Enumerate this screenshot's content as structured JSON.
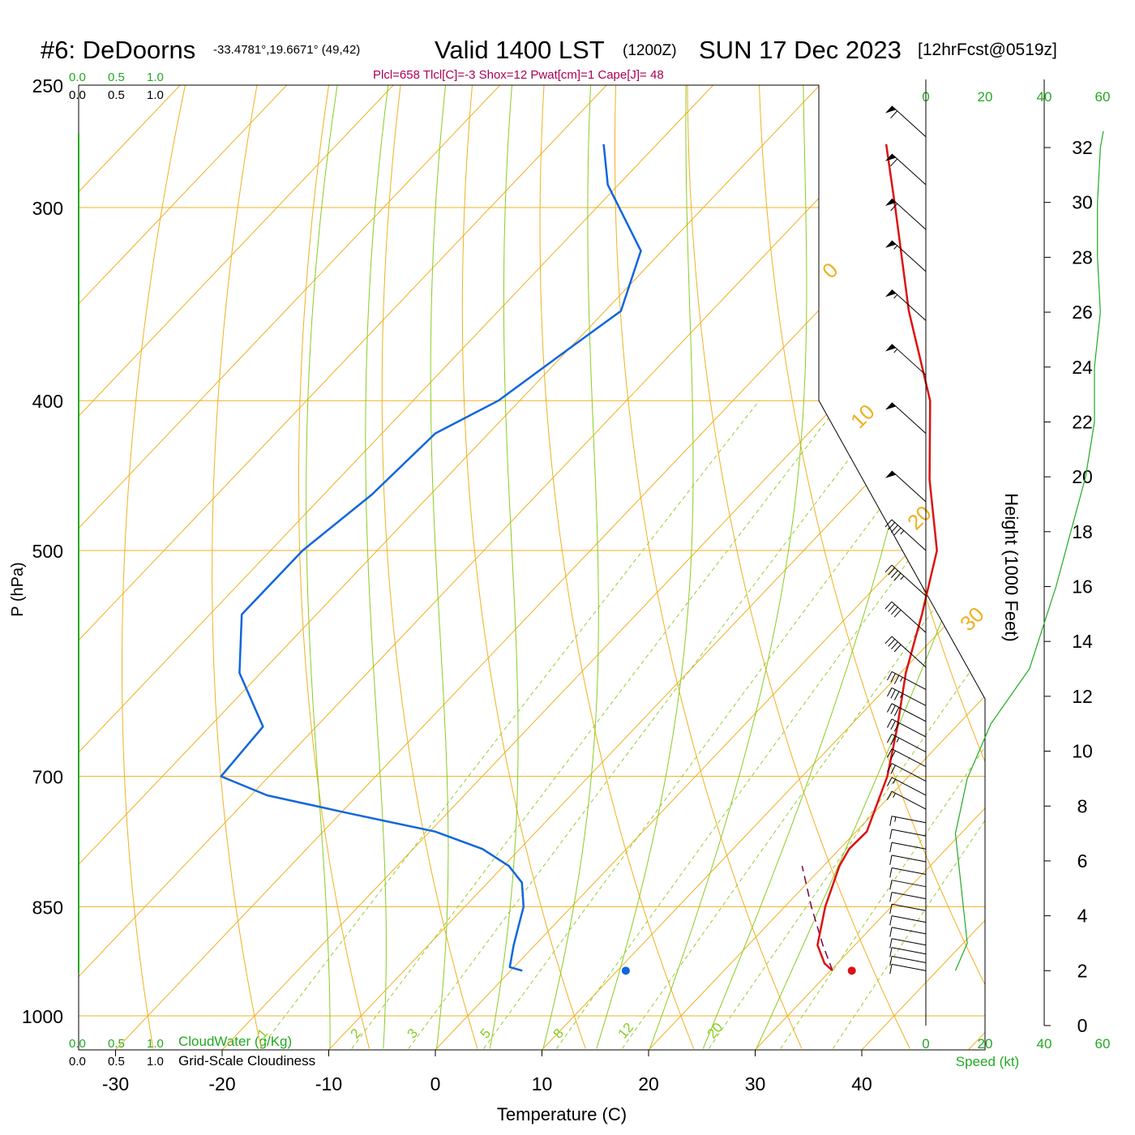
{
  "header": {
    "station": "#6: DeDoorns",
    "coords": "-33.4781°,19.6671° (49,42)",
    "valid": "Valid 1400 LST",
    "zulu": "(1200Z)",
    "date": "SUN 17 Dec 2023",
    "fcst": "[12hrFcst@0519z]",
    "indices": "Plcl=658 Tlcl[C]=-3 Shox=12 Pwat[cm]=1 Cape[J]= 48"
  },
  "scale_top": {
    "cloudwater_ticks": [
      "0.0",
      "0.5",
      "1.0"
    ],
    "cloudiness_ticks": [
      "0.0",
      "0.5",
      "1.0"
    ]
  },
  "scale_bottom": {
    "cloudwater_ticks": [
      "0.0",
      "0.5",
      "1.0"
    ],
    "cloudwater_label": "CloudWater (g/Kg)",
    "cloudiness_ticks": [
      "0.0",
      "0.5",
      "1.0"
    ],
    "cloudiness_label": "Grid-Scale Cloudiness"
  },
  "wind_panel": {
    "speed_ticks": [
      "0",
      "20",
      "40",
      "60"
    ],
    "speed_label": "Speed (kt)"
  },
  "colors": {
    "temperature": "#dd1111",
    "dewpoint": "#1166dd",
    "parcel": "#770044",
    "isotherm": "#f0b020",
    "dry_adiabat": "#f0b020",
    "moist_adiabat": "#88cc22",
    "mixing_ratio": "#99cc33",
    "speed_profile": "#22aa22",
    "barbs": "#000000"
  },
  "chart_data": {
    "type": "skew-t",
    "xlabel": "Temperature (C)",
    "ylabel": "P (hPa)",
    "y2label": "Height (1000 Feet)",
    "x_ticks": [
      -30,
      -20,
      -10,
      0,
      10,
      20,
      30,
      40
    ],
    "p_ticks": [
      250,
      300,
      400,
      500,
      700,
      850,
      1000
    ],
    "height_ticks": [
      0,
      2,
      4,
      6,
      8,
      10,
      12,
      14,
      16,
      18,
      20,
      22,
      24,
      26,
      28,
      30,
      32
    ],
    "isotherm_labels": [
      -30,
      -20,
      -10,
      0,
      10,
      20,
      30
    ],
    "isotherm_labels_upper": [
      0,
      10,
      20,
      30
    ],
    "mixing_ratio_labels": [
      "1",
      "2",
      "3",
      "5",
      "8",
      "12",
      "20"
    ],
    "temperature": [
      {
        "p": 935,
        "t": 30.2
      },
      {
        "p": 925,
        "t": 28.8
      },
      {
        "p": 900,
        "t": 26.5
      },
      {
        "p": 850,
        "t": 23.8
      },
      {
        "p": 800,
        "t": 21.5
      },
      {
        "p": 780,
        "t": 20.9
      },
      {
        "p": 760,
        "t": 21.0
      },
      {
        "p": 700,
        "t": 18.0
      },
      {
        "p": 650,
        "t": 14.5
      },
      {
        "p": 600,
        "t": 10.5
      },
      {
        "p": 550,
        "t": 6.8
      },
      {
        "p": 500,
        "t": 2.5
      },
      {
        "p": 450,
        "t": -4.5
      },
      {
        "p": 400,
        "t": -11.5
      },
      {
        "p": 350,
        "t": -21.5
      },
      {
        "p": 300,
        "t": -32.0
      },
      {
        "p": 273,
        "t": -38.5
      }
    ],
    "dewpoint": [
      {
        "p": 935,
        "t": 1.1
      },
      {
        "p": 930,
        "t": -0.4
      },
      {
        "p": 900,
        "t": -2.0
      },
      {
        "p": 850,
        "t": -4.5
      },
      {
        "p": 820,
        "t": -6.8
      },
      {
        "p": 800,
        "t": -9.5
      },
      {
        "p": 780,
        "t": -13.5
      },
      {
        "p": 760,
        "t": -19.5
      },
      {
        "p": 740,
        "t": -29.0
      },
      {
        "p": 720,
        "t": -38.5
      },
      {
        "p": 700,
        "t": -44.5
      },
      {
        "p": 650,
        "t": -45.0
      },
      {
        "p": 600,
        "t": -52.0
      },
      {
        "p": 550,
        "t": -57.0
      },
      {
        "p": 500,
        "t": -57.0
      },
      {
        "p": 460,
        "t": -55.5
      },
      {
        "p": 420,
        "t": -55.0
      },
      {
        "p": 400,
        "t": -52.0
      },
      {
        "p": 370,
        "t": -50.0
      },
      {
        "p": 350,
        "t": -48.5
      },
      {
        "p": 320,
        "t": -52.0
      },
      {
        "p": 290,
        "t": -61.0
      },
      {
        "p": 273,
        "t": -65.0
      }
    ],
    "parcel": [
      {
        "p": 935,
        "t": 30.2
      },
      {
        "p": 900,
        "t": 27.0
      },
      {
        "p": 850,
        "t": 22.5
      },
      {
        "p": 800,
        "t": 18.0
      }
    ],
    "surface_temp": {
      "p": 935,
      "t": 32.0
    },
    "surface_dewpoint": {
      "p": 935,
      "t": 10.8
    },
    "speed_profile": [
      {
        "h": 2.0,
        "kt": 10
      },
      {
        "h": 3.0,
        "kt": 14
      },
      {
        "h": 5.0,
        "kt": 12
      },
      {
        "h": 7.0,
        "kt": 10
      },
      {
        "h": 9.0,
        "kt": 14
      },
      {
        "h": 11.0,
        "kt": 22
      },
      {
        "h": 13.0,
        "kt": 35
      },
      {
        "h": 16.0,
        "kt": 44
      },
      {
        "h": 18.0,
        "kt": 49
      },
      {
        "h": 20.0,
        "kt": 54
      },
      {
        "h": 22.0,
        "kt": 57
      },
      {
        "h": 24.0,
        "kt": 57
      },
      {
        "h": 26.0,
        "kt": 59
      },
      {
        "h": 28.0,
        "kt": 58
      },
      {
        "h": 30.0,
        "kt": 58
      },
      {
        "h": 32.0,
        "kt": 59
      },
      {
        "h": 32.6,
        "kt": 60
      }
    ],
    "barbs": [
      {
        "p": 270,
        "spd": 60
      },
      {
        "p": 290,
        "spd": 60
      },
      {
        "p": 310,
        "spd": 60
      },
      {
        "p": 330,
        "spd": 55
      },
      {
        "p": 355,
        "spd": 55
      },
      {
        "p": 385,
        "spd": 55
      },
      {
        "p": 420,
        "spd": 50
      },
      {
        "p": 465,
        "spd": 50
      },
      {
        "p": 500,
        "spd": 45
      },
      {
        "p": 535,
        "spd": 45
      },
      {
        "p": 565,
        "spd": 40
      },
      {
        "p": 595,
        "spd": 40
      },
      {
        "p": 615,
        "spd": 35
      },
      {
        "p": 630,
        "spd": 35
      },
      {
        "p": 645,
        "spd": 30
      },
      {
        "p": 660,
        "spd": 30
      },
      {
        "p": 675,
        "spd": 25
      },
      {
        "p": 690,
        "spd": 20
      },
      {
        "p": 705,
        "spd": 20
      },
      {
        "p": 720,
        "spd": 15
      },
      {
        "p": 735,
        "spd": 15
      },
      {
        "p": 750,
        "spd": 15
      },
      {
        "p": 765,
        "spd": 10
      },
      {
        "p": 780,
        "spd": 10
      },
      {
        "p": 795,
        "spd": 10
      },
      {
        "p": 810,
        "spd": 10
      },
      {
        "p": 825,
        "spd": 10
      },
      {
        "p": 840,
        "spd": 10
      },
      {
        "p": 855,
        "spd": 10
      },
      {
        "p": 870,
        "spd": 10
      },
      {
        "p": 885,
        "spd": 10
      },
      {
        "p": 900,
        "spd": 10
      },
      {
        "p": 912,
        "spd": 10
      },
      {
        "p": 924,
        "spd": 10
      },
      {
        "p": 935,
        "spd": 10
      }
    ]
  }
}
